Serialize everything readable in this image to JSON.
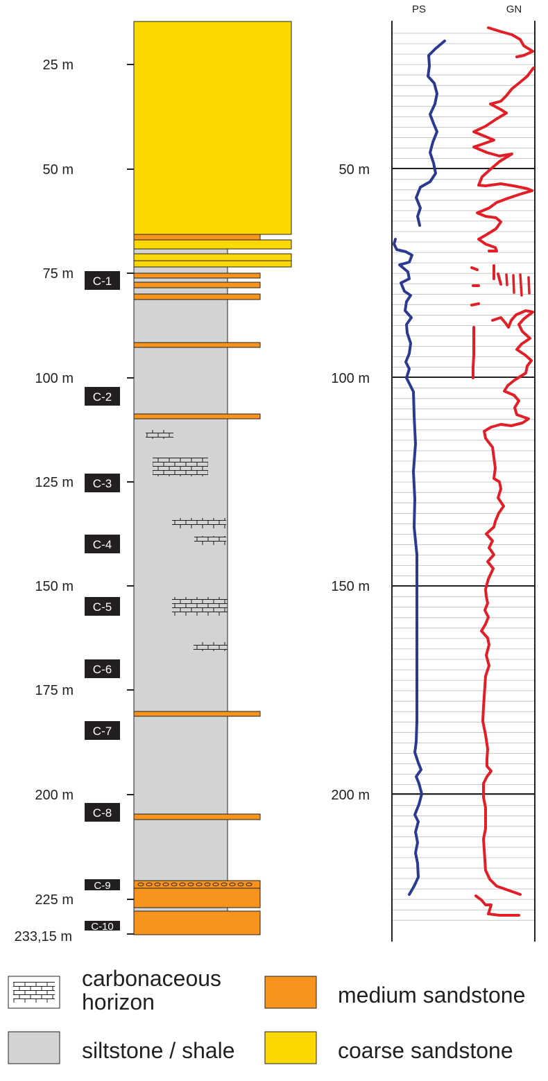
{
  "colors": {
    "coarse_sandstone": "#fcd800",
    "medium_sandstone": "#f7941d",
    "siltstone": "#d1d3d4",
    "ps_log": "#2b3990",
    "gn_log": "#e21f26",
    "core_box": "#231f20"
  },
  "depth_axis": {
    "labels": [
      "25 m",
      "50 m",
      "75 m",
      "100 m",
      "125 m",
      "150 m",
      "175 m",
      "200 m",
      "225 m",
      "233,15 m"
    ]
  },
  "core_samples": [
    "C-1",
    "C-2",
    "C-3",
    "C-4",
    "C-5",
    "C-6",
    "C-7",
    "C-8",
    "C-9",
    "C-10"
  ],
  "well_log": {
    "headers": [
      "PS",
      "GN"
    ],
    "depth_labels": [
      "50 m",
      "100 m",
      "150 m",
      "200 m"
    ]
  },
  "legend": {
    "carbonaceous": "carbonaceous",
    "carbonaceous_2": "horizon",
    "medium": "medium sandstone",
    "siltstone": "siltstone / shale",
    "coarse": "coarse sandstone"
  }
}
